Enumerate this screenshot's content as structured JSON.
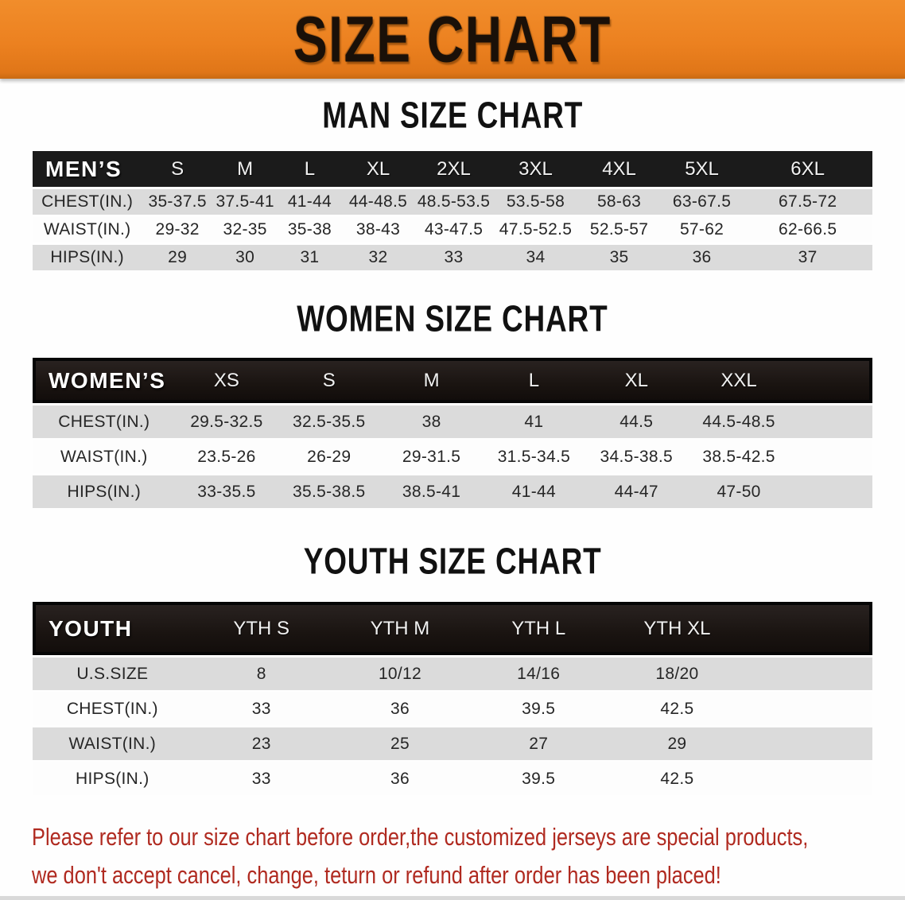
{
  "banner": {
    "title": "SIZE CHART"
  },
  "colors": {
    "banner_orange": "#ec8120",
    "header_bar_black": "#1b1b1b",
    "row_gray": "#dbdbdb",
    "disclaimer_red": "#b02a20"
  },
  "sections": [
    {
      "title": "MAN SIZE CHART",
      "header_label": "MEN’S",
      "columns": [
        "S",
        "M",
        "L",
        "XL",
        "2XL",
        "3XL",
        "4XL",
        "5XL",
        "6XL"
      ],
      "rows": [
        {
          "label": "CHEST(IN.)",
          "values": [
            "35-37.5",
            "37.5-41",
            "41-44",
            "44-48.5",
            "48.5-53.5",
            "53.5-58",
            "58-63",
            "63-67.5",
            "67.5-72"
          ]
        },
        {
          "label": "WAIST(IN.)",
          "values": [
            "29-32",
            "32-35",
            "35-38",
            "38-43",
            "43-47.5",
            "47.5-52.5",
            "52.5-57",
            "57-62",
            "62-66.5"
          ]
        },
        {
          "label": "HIPS(IN.)",
          "values": [
            "29",
            "30",
            "31",
            "32",
            "33",
            "34",
            "35",
            "36",
            "37"
          ]
        }
      ]
    },
    {
      "title": "WOMEN SIZE CHART",
      "header_label": "WOMEN’S",
      "columns": [
        "XS",
        "S",
        "M",
        "L",
        "XL",
        "XXL"
      ],
      "rows": [
        {
          "label": "CHEST(IN.)",
          "values": [
            "29.5-32.5",
            "32.5-35.5",
            "38",
            "41",
            "44.5",
            "44.5-48.5"
          ]
        },
        {
          "label": "WAIST(IN.)",
          "values": [
            "23.5-26",
            "26-29",
            "29-31.5",
            "31.5-34.5",
            "34.5-38.5",
            "38.5-42.5"
          ]
        },
        {
          "label": "HIPS(IN.)",
          "values": [
            "33-35.5",
            "35.5-38.5",
            "38.5-41",
            "41-44",
            "44-47",
            "47-50"
          ]
        }
      ]
    },
    {
      "title": "YOUTH SIZE CHART",
      "header_label": "YOUTH",
      "columns": [
        "YTH S",
        "YTH M",
        "YTH L",
        "YTH XL"
      ],
      "rows": [
        {
          "label": "U.S.SIZE",
          "values": [
            "8",
            "10/12",
            "14/16",
            "18/20"
          ]
        },
        {
          "label": "CHEST(IN.)",
          "values": [
            "33",
            "36",
            "39.5",
            "42.5"
          ]
        },
        {
          "label": "WAIST(IN.)",
          "values": [
            "23",
            "25",
            "27",
            "29"
          ]
        },
        {
          "label": "HIPS(IN.)",
          "values": [
            "33",
            "36",
            "39.5",
            "42.5"
          ]
        }
      ]
    }
  ],
  "disclaimer": {
    "line1": "Please refer to our size chart before order,the customized jerseys are special products,",
    "line2": "we don't accept cancel, change, teturn or refund after order has been placed!"
  }
}
